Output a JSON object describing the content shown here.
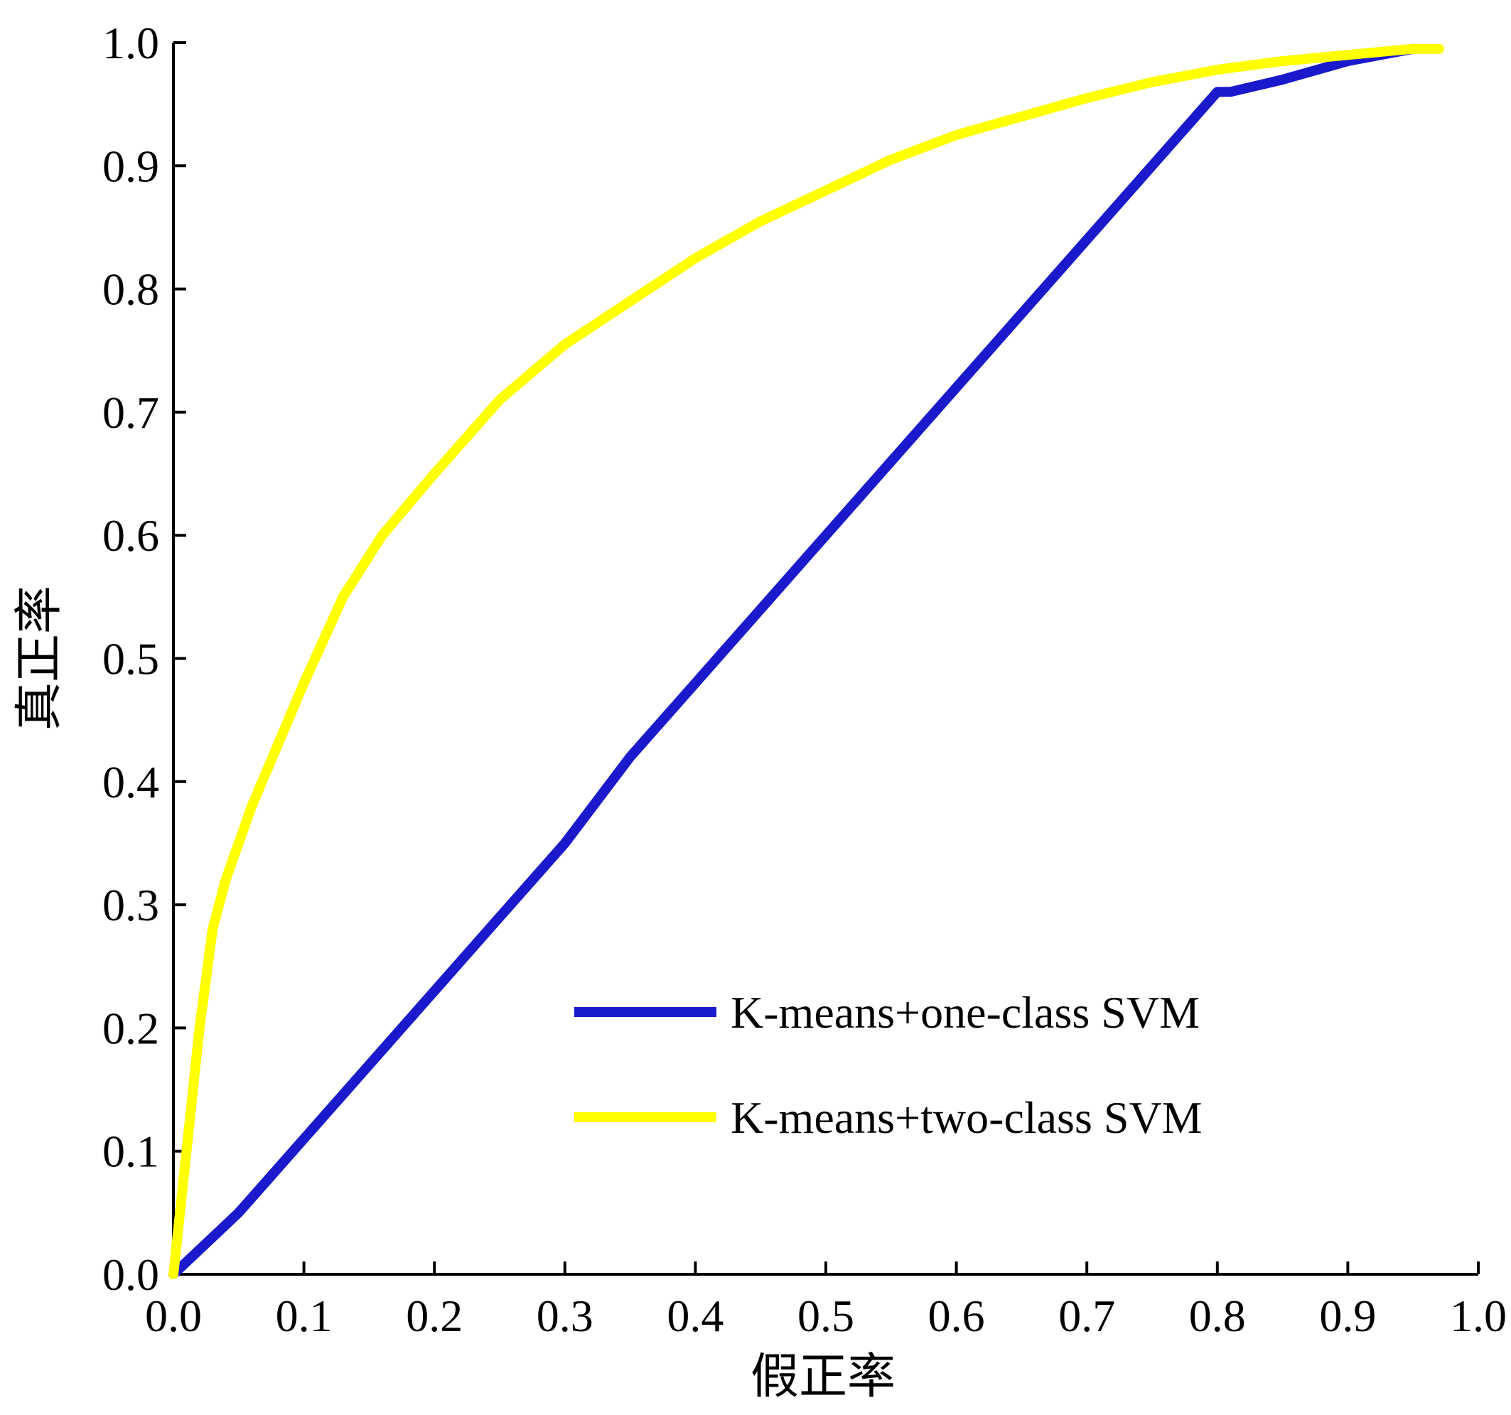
{
  "chart_data": {
    "type": "line",
    "title": "",
    "xlabel": "假正率",
    "ylabel": "真正率",
    "xlim": [
      0.0,
      1.0
    ],
    "ylim": [
      0.0,
      1.0
    ],
    "xticks": [
      "0.0",
      "0.1",
      "0.2",
      "0.3",
      "0.4",
      "0.5",
      "0.6",
      "0.7",
      "0.8",
      "0.9",
      "1.0"
    ],
    "yticks": [
      "0.0",
      "0.1",
      "0.2",
      "0.3",
      "0.4",
      "0.5",
      "0.6",
      "0.7",
      "0.8",
      "0.9",
      "1.0"
    ],
    "grid": false,
    "legend_position": "bottom-right",
    "series": [
      {
        "name": "K-means+one-class SVM",
        "color": "#1a1acc",
        "x": [
          0.0,
          0.05,
          0.1,
          0.15,
          0.2,
          0.25,
          0.3,
          0.35,
          0.4,
          0.45,
          0.5,
          0.55,
          0.6,
          0.65,
          0.7,
          0.75,
          0.8,
          0.81,
          0.85,
          0.9,
          0.95
        ],
        "y": [
          0.0,
          0.05,
          0.11,
          0.17,
          0.23,
          0.29,
          0.35,
          0.42,
          0.48,
          0.54,
          0.6,
          0.66,
          0.72,
          0.78,
          0.84,
          0.9,
          0.96,
          0.96,
          0.97,
          0.985,
          0.995
        ]
      },
      {
        "name": "K-means+two-class SVM",
        "color": "#ffff00",
        "x": [
          0.0,
          0.01,
          0.02,
          0.03,
          0.04,
          0.06,
          0.08,
          0.1,
          0.13,
          0.16,
          0.2,
          0.25,
          0.3,
          0.35,
          0.4,
          0.45,
          0.5,
          0.55,
          0.6,
          0.65,
          0.7,
          0.75,
          0.8,
          0.85,
          0.9,
          0.95,
          0.97
        ],
        "y": [
          0.0,
          0.1,
          0.2,
          0.28,
          0.32,
          0.38,
          0.43,
          0.48,
          0.55,
          0.6,
          0.65,
          0.71,
          0.755,
          0.79,
          0.825,
          0.855,
          0.88,
          0.905,
          0.925,
          0.94,
          0.955,
          0.968,
          0.978,
          0.985,
          0.99,
          0.995,
          0.995
        ]
      }
    ]
  }
}
